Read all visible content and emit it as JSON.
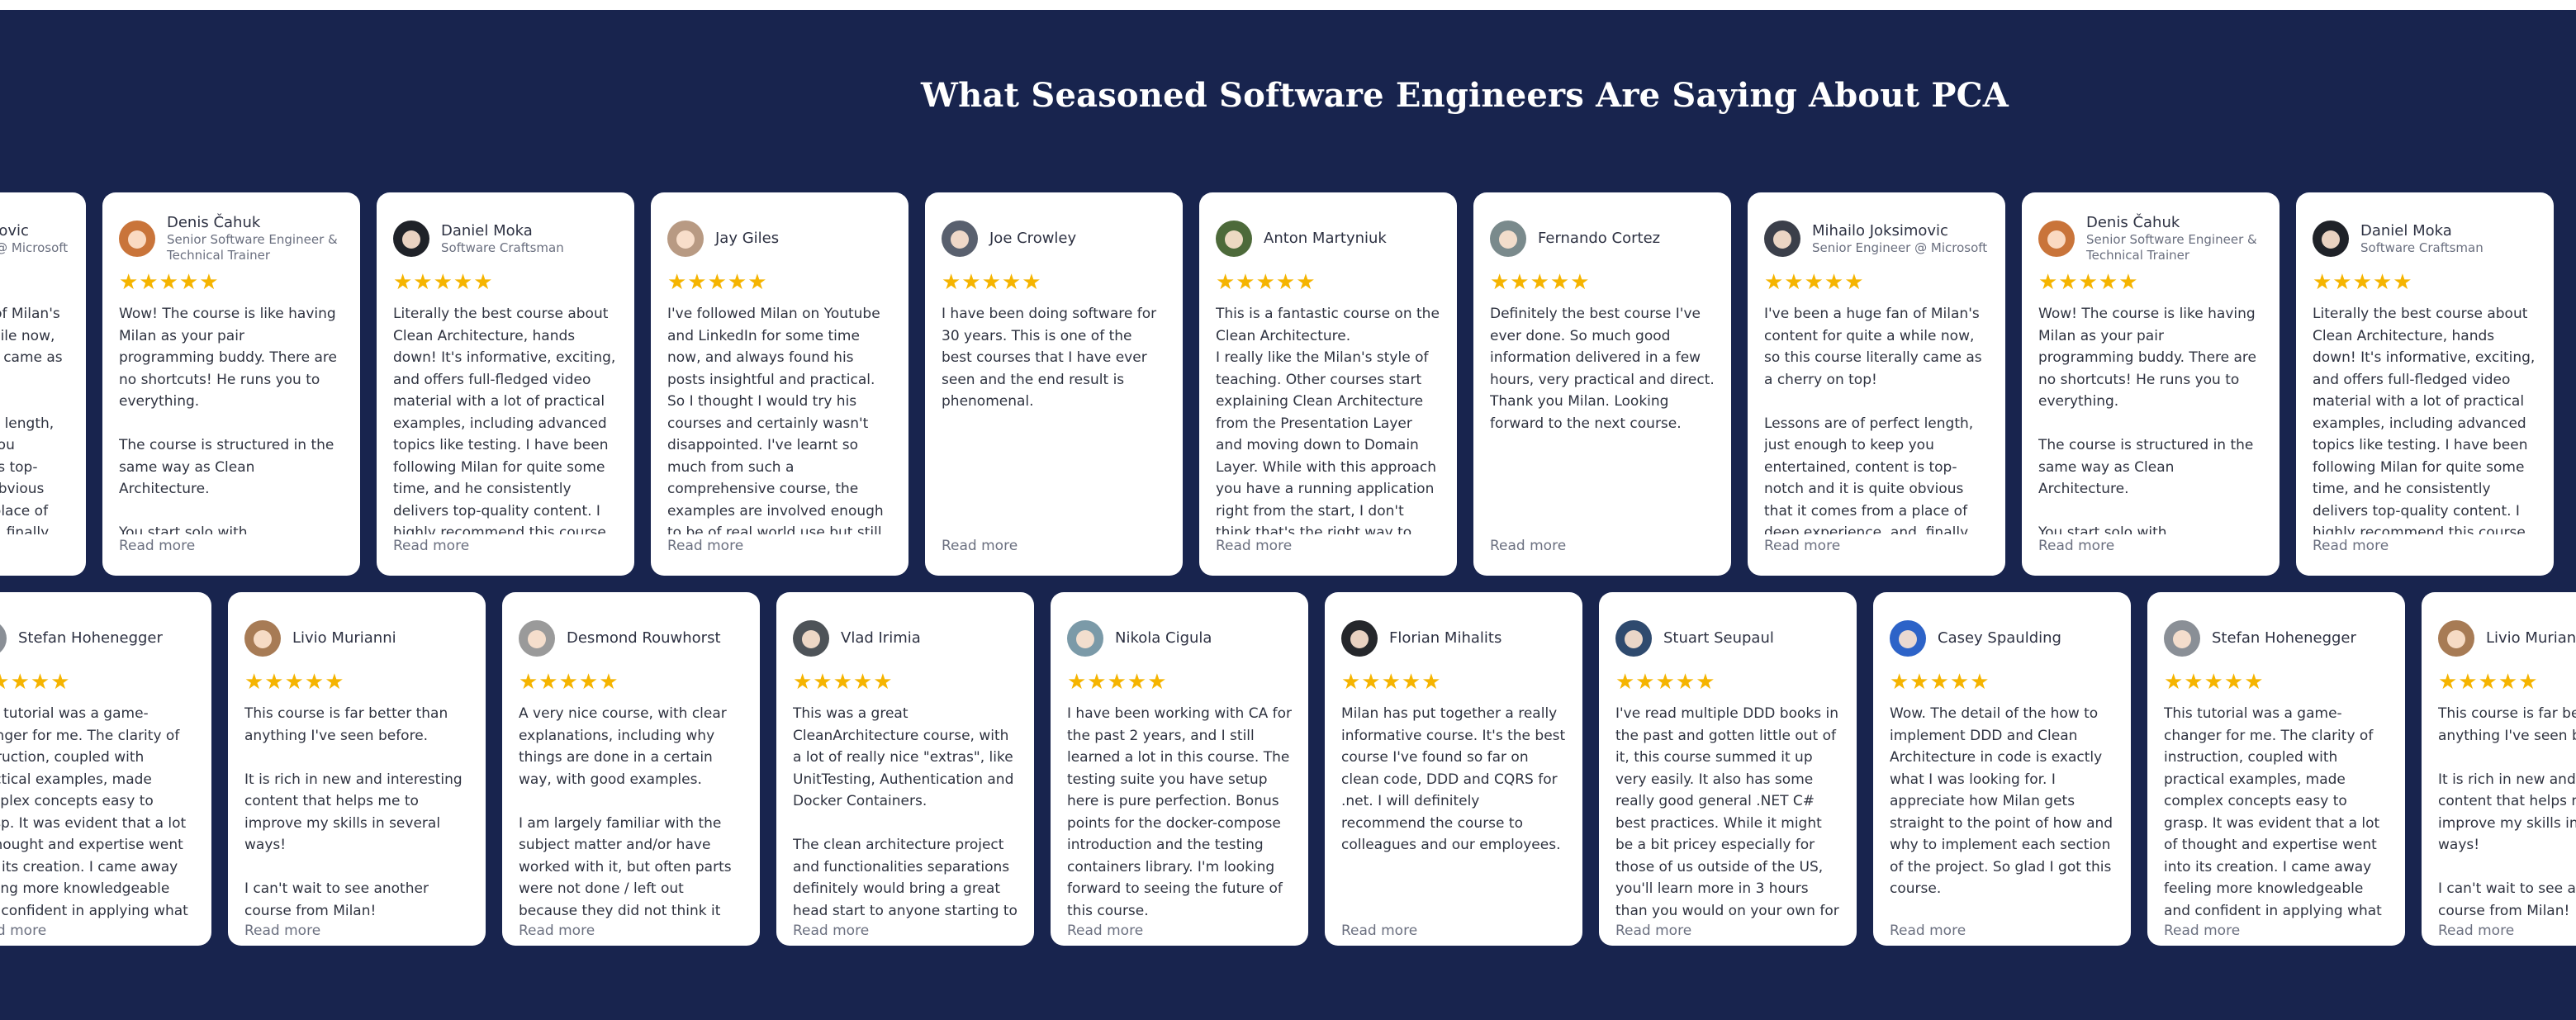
{
  "title": "What Seasoned Software Engineers Are Saying About PCA",
  "colors": {
    "section_bg": "#18244e",
    "card_bg": "#ffffff",
    "star": "#f5b400"
  },
  "read_more_label": "Read more",
  "star_glyphs": "★★★★★",
  "rating_stars": 5,
  "row1": [
    {
      "name": "Mihailo Joksimovic",
      "role": "Senior Engineer @ Microsoft",
      "avatar_color": "#3b3f4a",
      "text": "I've been a huge fan of Milan's content for quite a while now, so this course literally came as a cherry on top!\n\nLessons are of perfect length, just enough to keep you entertained, content is top-notch and it is quite obvious that it comes from a place of deep experience, and, finally, th..."
    },
    {
      "name": "Denis Čahuk",
      "role": "Senior Software Engineer & Technical Trainer",
      "avatar_color": "#c9743a",
      "text": "Wow! The course is like having Milan as your pair programming buddy. There are no shortcuts! He runs you to everything.\n\nThe course is structured in the same way as Clean Architecture.\n\nYou start solo with understanding and theory, then write code..."
    },
    {
      "name": "Daniel Moka",
      "role": "Software Craftsman",
      "avatar_color": "#1f2228",
      "text": "Literally the best course about Clean Architecture, hands down! It's informative, exciting, and offers full-fledged video material with a lot of practical examples, including advanced topics like testing. I have been following Milan for quite some time, and he consistently delivers top-quality content. I highly recommend this course to anyon..."
    },
    {
      "name": "Jay Giles",
      "role": "",
      "avatar_color": "#b89a83",
      "text": "I've followed Milan on Youtube and LinkedIn for some time now, and always found his posts insightful and practical. So I thought I would try his courses and certainly wasn't disappointed. I've learnt so much from such a comprehensive course, the examples are involved enough to be of real world use but still clear enough to understand...."
    },
    {
      "name": "Joe Crowley",
      "role": "",
      "avatar_color": "#59606e",
      "text": "I have been doing software for 30 years. This is one of the best courses that I have ever seen and the end result is phenomenal."
    },
    {
      "name": "Anton Martyniuk",
      "role": "",
      "avatar_color": "#4d6a3a",
      "text": "This is a fantastic course on the Clean Architecture.\nI really like the Milan's style of teaching. Other courses start explaining Clean Architecture from the Presentation Layer and moving down to Domain Layer. While with this approach you have a running application right from the start, I don't think that's the right way to..."
    },
    {
      "name": "Fernando Cortez",
      "role": "",
      "avatar_color": "#7a8a8c",
      "text": "Definitely the best course I've ever done. So much good information delivered in a few hours, very practical and direct. Thank you Milan. Looking forward to the next course."
    },
    {
      "name": "Mihailo Joksimovic",
      "role": "Senior Engineer @ Microsoft",
      "avatar_color": "#3b3f4a",
      "text": "I've been a huge fan of Milan's content for quite a while now, so this course literally came as a cherry on top!\n\nLessons are of perfect length, just enough to keep you entertained, content is top-notch and it is quite obvious that it comes from a place of deep experience, and, finally, th..."
    },
    {
      "name": "Denis Čahuk",
      "role": "Senior Software Engineer & Technical Trainer",
      "avatar_color": "#c9743a",
      "text": "Wow! The course is like having Milan as your pair programming buddy. There are no shortcuts! He runs you to everything.\n\nThe course is structured in the same way as Clean Architecture.\n\nYou start solo with understanding and theory, then write code..."
    },
    {
      "name": "Daniel Moka",
      "role": "Software Craftsman",
      "avatar_color": "#1f2228",
      "text": "Literally the best course about Clean Architecture, hands down! It's informative, exciting, and offers full-fledged video material with a lot of practical examples, including advanced topics like testing. I have been following Milan for quite some time, and he consistently delivers top-quality content. I highly recommend this course to anyon..."
    }
  ],
  "row2": [
    {
      "name": "Stefan Hohenegger",
      "role": "",
      "avatar_color": "#8a8f96",
      "text": "This tutorial was a game-changer for me. The clarity of instruction, coupled with practical examples, made complex concepts easy to grasp. It was evident that a lot of thought and expertise went into its creation. I came away feeling more knowledgeable and confident in applying what I learned. Truly brilliant work that I would..."
    },
    {
      "name": "Livio Murianni",
      "role": "",
      "avatar_color": "#a77b55",
      "text": "This course is far better than anything I've seen before.\n\nIt is rich in new and interesting content that helps me to improve my skills in several ways!\n\nI can't wait to see another course from Milan!"
    },
    {
      "name": "Desmond Rouwhorst",
      "role": "",
      "avatar_color": "#9a9a9a",
      "text": "A very nice course, with clear explanations, including why things are done in a certain way, with good examples.\n\nI am largely familiar with the subject matter and/or have worked with it, but often parts were not done / left out because they did not think it was necessary...."
    },
    {
      "name": "Vlad Irimia",
      "role": "",
      "avatar_color": "#4e5358",
      "text": "This was a great CleanArchitecture course, with a lot of really nice \"extras\", like UnitTesting, Authentication and Docker Containers.\n\nThe clean architecture project and functionalities separations definitely would bring a great head start to anyone starting to develo..."
    },
    {
      "name": "Nikola Cigula",
      "role": "",
      "avatar_color": "#7b9aa8",
      "text": "I have been working with CA for the past 2 years, and I still learned a lot in this course. The testing suite you have setup here is pure perfection. Bonus points for the docker-compose introduction and the testing containers library. I'm looking forward to seeing the future of this course."
    },
    {
      "name": "Florian Mihalits",
      "role": "",
      "avatar_color": "#25272b",
      "text": "Milan has put together a really informative course. It's the best course I've found so far on clean code, DDD and CQRS for .net. I will definitely recommend the course to colleagues and our employees."
    },
    {
      "name": "Stuart Seupaul",
      "role": "",
      "avatar_color": "#2f4a6e",
      "text": "I've read multiple DDD books in the past and gotten little out of it, this course summed it up very easily. It also has some really good general .NET C# best practices. While it might be a bit pricey especially for those of us outside of the US, you'll learn more in 3 hours than you would on your own for 40. I'd pay at least the same amount or more fo..."
    },
    {
      "name": "Casey Spaulding",
      "role": "",
      "avatar_color": "#2d63c8",
      "text": "Wow. The detail of the how to implement DDD and Clean Architecture in code is exactly what I was looking for. I appreciate how Milan gets straight to the point of how and why to implement each section of the project. So glad I got this course."
    },
    {
      "name": "Stefan Hohenegger",
      "role": "",
      "avatar_color": "#8a8f96",
      "text": "This tutorial was a game-changer for me. The clarity of instruction, coupled with practical examples, made complex concepts easy to grasp. It was evident that a lot of thought and expertise went into its creation. I came away feeling more knowledgeable and confident in applying what I learned. Truly brilliant work that I would..."
    },
    {
      "name": "Livio Murianni",
      "role": "",
      "avatar_color": "#a77b55",
      "text": "This course is far better than anything I've seen before.\n\nIt is rich in new and interesting content that helps me to improve my skills in several ways!\n\nI can't wait to see another course from Milan!"
    }
  ]
}
